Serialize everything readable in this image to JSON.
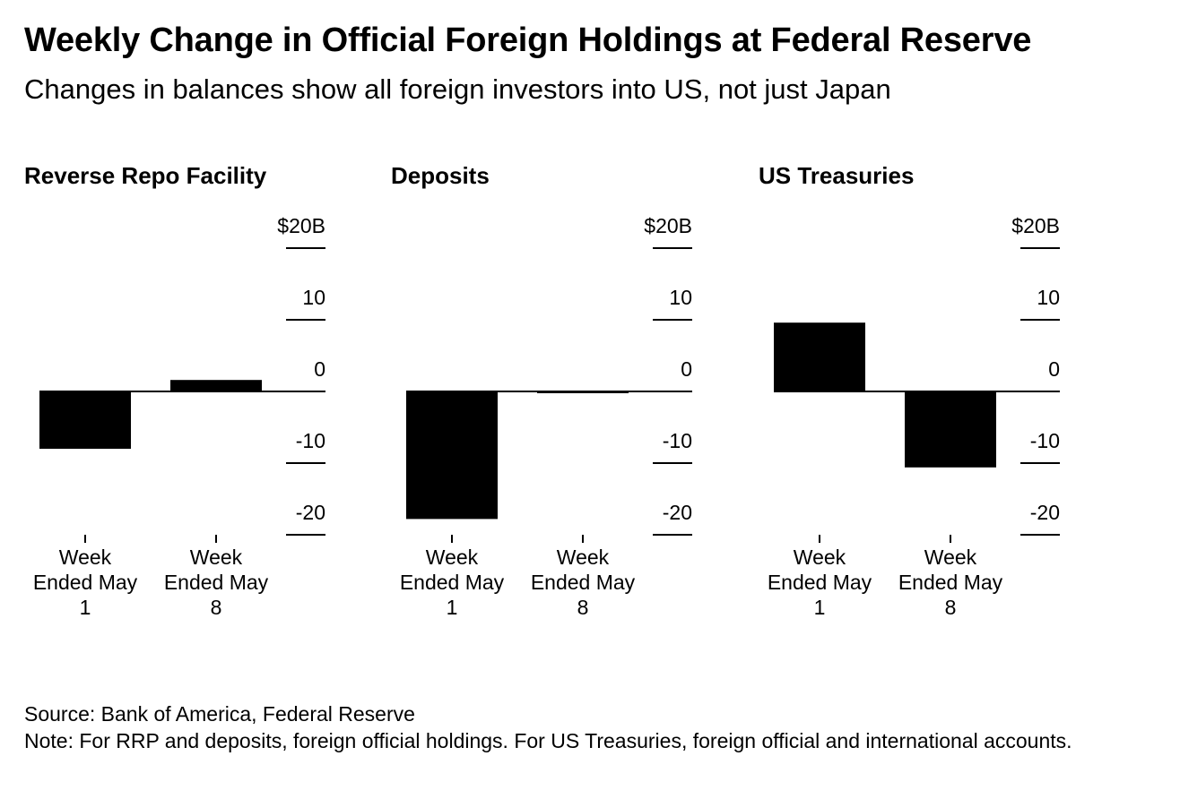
{
  "title": "Weekly Change in Official Foreign Holdings at Federal Reserve",
  "subtitle": "Changes in balances show all foreign investors into US, not just Japan",
  "source": "Source: Bank of America, Federal Reserve",
  "note": "Note: For RRP and deposits, foreign official holdings. For US Treasuries, foreign official and international accounts.",
  "colors": {
    "bar": "#000000",
    "axis": "#000000",
    "background": "#ffffff"
  },
  "chart_data": [
    {
      "type": "bar",
      "title": "Reverse Repo Facility",
      "categories": [
        [
          "Week",
          "Ended May",
          "1"
        ],
        [
          "Week",
          "Ended May",
          "8"
        ]
      ],
      "values": [
        -8.0,
        1.6
      ],
      "ylim": [
        -20,
        20
      ],
      "yticks": [
        20,
        10,
        0,
        -10,
        -20
      ],
      "ytick_labels": [
        "$20B",
        "10",
        "0",
        "-10",
        "-20"
      ],
      "grid": false,
      "axis_position": "right"
    },
    {
      "type": "bar",
      "title": "Deposits",
      "categories": [
        [
          "Week",
          "Ended May",
          "1"
        ],
        [
          "Week",
          "Ended May",
          "8"
        ]
      ],
      "values": [
        -17.8,
        -0.1
      ],
      "ylim": [
        -20,
        20
      ],
      "yticks": [
        20,
        10,
        0,
        -10,
        -20
      ],
      "ytick_labels": [
        "$20B",
        "10",
        "0",
        "-10",
        "-20"
      ],
      "grid": false,
      "axis_position": "right"
    },
    {
      "type": "bar",
      "title": "US Treasuries",
      "categories": [
        [
          "Week",
          "Ended May",
          "1"
        ],
        [
          "Week",
          "Ended May",
          "8"
        ]
      ],
      "values": [
        9.6,
        -10.6
      ],
      "ylim": [
        -20,
        20
      ],
      "yticks": [
        20,
        10,
        0,
        -10,
        -20
      ],
      "ytick_labels": [
        "$20B",
        "10",
        "0",
        "-10",
        "-20"
      ],
      "grid": false,
      "axis_position": "right"
    }
  ]
}
